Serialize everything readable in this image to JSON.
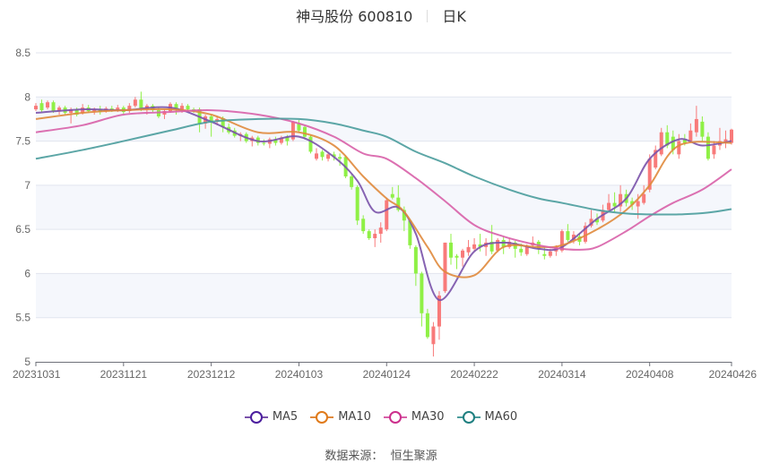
{
  "title": {
    "stock": "神马股份 600810",
    "period": "日K"
  },
  "source": {
    "label": "数据来源：",
    "value": "恒生聚源"
  },
  "chart_data": {
    "type": "candlestick",
    "ylim": [
      5,
      8.5
    ],
    "y_ticks": [
      "5",
      "5.5",
      "6",
      "6.5",
      "7",
      "7.5",
      "8",
      "8.5"
    ],
    "x_ticks": [
      "20231031",
      "20231121",
      "20231212",
      "20240103",
      "20240124",
      "20240222",
      "20240314",
      "20240408",
      "20240426"
    ],
    "grid": true,
    "legend_position": "bottom",
    "colors": {
      "up": "#f87a7a",
      "down": "#8ff046",
      "MA5": "#7a52aa",
      "MA10": "#e08a3c",
      "MA30": "#d860a8",
      "MA60": "#4a9c9c"
    },
    "legend_marker_colors": {
      "MA5": "#4b1e9e",
      "MA10": "#e07a1a",
      "MA30": "#cc2f8c",
      "MA60": "#1f7f80"
    },
    "dates": [
      "20231031",
      "20231101",
      "20231102",
      "20231103",
      "20231106",
      "20231107",
      "20231108",
      "20231109",
      "20231110",
      "20231113",
      "20231114",
      "20231115",
      "20231116",
      "20231117",
      "20231120",
      "20231121",
      "20231122",
      "20231123",
      "20231124",
      "20231127",
      "20231128",
      "20231129",
      "20231130",
      "20231201",
      "20231204",
      "20231205",
      "20231206",
      "20231207",
      "20231208",
      "20231211",
      "20231212",
      "20231213",
      "20231214",
      "20231215",
      "20231218",
      "20231219",
      "20231220",
      "20231221",
      "20231222",
      "20231225",
      "20231226",
      "20231227",
      "20231228",
      "20231229",
      "20240102",
      "20240103",
      "20240104",
      "20240105",
      "20240108",
      "20240109",
      "20240110",
      "20240111",
      "20240112",
      "20240115",
      "20240116",
      "20240117",
      "20240118",
      "20240119",
      "20240122",
      "20240123",
      "20240124",
      "20240125",
      "20240126",
      "20240129",
      "20240130",
      "20240131",
      "20240201",
      "20240202",
      "20240205",
      "20240206",
      "20240207",
      "20240208",
      "20240219",
      "20240220",
      "20240221",
      "20240222",
      "20240223",
      "20240226",
      "20240227",
      "20240228",
      "20240229",
      "20240301",
      "20240304",
      "20240305",
      "20240306",
      "20240307",
      "20240308",
      "20240311",
      "20240312",
      "20240313",
      "20240314",
      "20240315",
      "20240318",
      "20240319",
      "20240320",
      "20240321",
      "20240322",
      "20240325",
      "20240326",
      "20240327",
      "20240328",
      "20240329",
      "20240401",
      "20240402",
      "20240403",
      "20240408",
      "20240409",
      "20240410",
      "20240411",
      "20240412",
      "20240415",
      "20240416",
      "20240417",
      "20240418",
      "20240419",
      "20240422",
      "20240423",
      "20240424",
      "20240425",
      "20240426"
    ],
    "ohlc_fields": [
      "open",
      "close",
      "low",
      "high"
    ],
    "candles": [
      [
        7.86,
        7.9,
        7.84,
        7.93
      ],
      [
        7.93,
        7.85,
        7.83,
        7.97
      ],
      [
        7.88,
        7.94,
        7.86,
        7.96
      ],
      [
        7.94,
        7.84,
        7.82,
        7.96
      ],
      [
        7.84,
        7.88,
        7.8,
        7.9
      ],
      [
        7.88,
        7.82,
        7.8,
        7.9
      ],
      [
        7.82,
        7.86,
        7.7,
        7.88
      ],
      [
        7.86,
        7.8,
        7.78,
        7.88
      ],
      [
        7.82,
        7.88,
        7.8,
        7.92
      ],
      [
        7.88,
        7.84,
        7.82,
        7.91
      ],
      [
        7.84,
        7.86,
        7.8,
        7.88
      ],
      [
        7.86,
        7.83,
        7.8,
        7.9
      ],
      [
        7.84,
        7.87,
        7.82,
        7.89
      ],
      [
        7.87,
        7.85,
        7.83,
        7.9
      ],
      [
        7.85,
        7.88,
        7.83,
        7.91
      ],
      [
        7.88,
        7.83,
        7.81,
        7.9
      ],
      [
        7.84,
        7.9,
        7.82,
        7.93
      ],
      [
        7.9,
        7.97,
        7.88,
        8.0
      ],
      [
        7.97,
        7.86,
        7.84,
        8.06
      ],
      [
        7.86,
        7.9,
        7.8,
        7.92
      ],
      [
        7.9,
        7.85,
        7.83,
        7.92
      ],
      [
        7.85,
        7.78,
        7.76,
        7.88
      ],
      [
        7.8,
        7.84,
        7.75,
        7.86
      ],
      [
        7.84,
        7.92,
        7.82,
        7.94
      ],
      [
        7.92,
        7.86,
        7.8,
        7.94
      ],
      [
        7.86,
        7.9,
        7.82,
        7.93
      ],
      [
        7.9,
        7.86,
        7.84,
        7.92
      ],
      [
        7.86,
        7.84,
        7.82,
        7.88
      ],
      [
        7.86,
        7.7,
        7.6,
        7.88
      ],
      [
        7.7,
        7.78,
        7.64,
        7.8
      ],
      [
        7.78,
        7.72,
        7.55,
        7.8
      ],
      [
        7.72,
        7.75,
        7.68,
        7.78
      ],
      [
        7.76,
        7.66,
        7.6,
        7.78
      ],
      [
        7.66,
        7.6,
        7.58,
        7.7
      ],
      [
        7.62,
        7.56,
        7.54,
        7.65
      ],
      [
        7.56,
        7.58,
        7.5,
        7.6
      ],
      [
        7.58,
        7.5,
        7.48,
        7.6
      ],
      [
        7.5,
        7.54,
        7.44,
        7.56
      ],
      [
        7.54,
        7.48,
        7.45,
        7.56
      ],
      [
        7.48,
        7.47,
        7.45,
        7.52
      ],
      [
        7.47,
        7.52,
        7.42,
        7.54
      ],
      [
        7.52,
        7.48,
        7.45,
        7.55
      ],
      [
        7.48,
        7.54,
        7.46,
        7.56
      ],
      [
        7.55,
        7.5,
        7.45,
        7.57
      ],
      [
        7.52,
        7.72,
        7.5,
        7.73
      ],
      [
        7.7,
        7.62,
        7.6,
        7.74
      ],
      [
        7.66,
        7.55,
        7.52,
        7.68
      ],
      [
        7.55,
        7.38,
        7.36,
        7.57
      ],
      [
        7.3,
        7.36,
        7.28,
        7.42
      ],
      [
        7.38,
        7.32,
        7.28,
        7.4
      ],
      [
        7.3,
        7.35,
        7.27,
        7.38
      ],
      [
        7.35,
        7.32,
        7.28,
        7.38
      ],
      [
        7.32,
        7.3,
        7.22,
        7.36
      ],
      [
        7.32,
        7.1,
        7.08,
        7.34
      ],
      [
        7.1,
        6.98,
        6.95,
        7.12
      ],
      [
        6.98,
        6.6,
        6.55,
        7.0
      ],
      [
        6.62,
        6.48,
        6.45,
        6.66
      ],
      [
        6.48,
        6.4,
        6.38,
        6.5
      ],
      [
        6.4,
        6.45,
        6.3,
        6.5
      ],
      [
        6.45,
        6.52,
        6.35,
        6.58
      ],
      [
        6.5,
        6.83,
        6.48,
        6.86
      ],
      [
        6.9,
        6.86,
        6.84,
        6.98
      ],
      [
        6.86,
        6.72,
        6.7,
        7.0
      ],
      [
        6.72,
        6.6,
        6.48,
        6.76
      ],
      [
        6.6,
        6.32,
        6.28,
        6.62
      ],
      [
        6.3,
        6.0,
        5.86,
        6.32
      ],
      [
        6.0,
        5.55,
        5.4,
        6.02
      ],
      [
        5.55,
        5.28,
        5.26,
        5.6
      ],
      [
        5.2,
        5.4,
        5.06,
        5.45
      ],
      [
        5.4,
        5.75,
        5.25,
        5.8
      ],
      [
        5.8,
        6.35,
        5.78,
        6.35
      ],
      [
        6.35,
        6.18,
        6.1,
        6.45
      ],
      [
        6.2,
        6.18,
        6.05,
        6.22
      ],
      [
        6.18,
        6.26,
        6.08,
        6.28
      ],
      [
        6.24,
        6.3,
        6.2,
        6.38
      ],
      [
        6.28,
        6.33,
        6.26,
        6.4
      ],
      [
        6.33,
        6.3,
        6.25,
        6.45
      ],
      [
        6.3,
        6.35,
        6.2,
        6.4
      ],
      [
        6.36,
        6.25,
        6.22,
        6.55
      ],
      [
        6.26,
        6.38,
        6.24,
        6.4
      ],
      [
        6.38,
        6.3,
        6.22,
        6.42
      ],
      [
        6.3,
        6.36,
        6.28,
        6.4
      ],
      [
        6.35,
        6.28,
        6.18,
        6.37
      ],
      [
        6.28,
        6.24,
        6.2,
        6.34
      ],
      [
        6.22,
        6.3,
        6.2,
        6.33
      ],
      [
        6.32,
        6.35,
        6.3,
        6.42
      ],
      [
        6.36,
        6.28,
        6.22,
        6.38
      ],
      [
        6.22,
        6.2,
        6.16,
        6.3
      ],
      [
        6.2,
        6.25,
        6.18,
        6.28
      ],
      [
        6.25,
        6.3,
        6.2,
        6.32
      ],
      [
        6.26,
        6.48,
        6.24,
        6.5
      ],
      [
        6.48,
        6.38,
        6.36,
        6.56
      ],
      [
        6.38,
        6.44,
        6.34,
        6.48
      ],
      [
        6.42,
        6.36,
        6.32,
        6.46
      ],
      [
        6.36,
        6.54,
        6.34,
        6.58
      ],
      [
        6.54,
        6.62,
        6.52,
        6.72
      ],
      [
        6.62,
        6.58,
        6.55,
        6.68
      ],
      [
        6.6,
        6.72,
        6.58,
        6.78
      ],
      [
        6.72,
        6.8,
        6.7,
        6.9
      ],
      [
        6.8,
        6.76,
        6.7,
        6.92
      ],
      [
        6.76,
        6.9,
        6.7,
        7.0
      ],
      [
        6.9,
        6.8,
        6.76,
        6.95
      ],
      [
        6.82,
        6.78,
        6.72,
        6.86
      ],
      [
        6.76,
        6.82,
        6.62,
        6.9
      ],
      [
        6.8,
        6.9,
        6.78,
        7.0
      ],
      [
        6.95,
        7.3,
        6.92,
        7.35
      ],
      [
        7.2,
        7.4,
        7.18,
        7.45
      ],
      [
        7.35,
        7.6,
        7.33,
        7.65
      ],
      [
        7.6,
        7.45,
        7.42,
        7.68
      ],
      [
        7.55,
        7.4,
        7.35,
        7.62
      ],
      [
        7.35,
        7.5,
        7.3,
        7.58
      ],
      [
        7.52,
        7.48,
        7.45,
        7.58
      ],
      [
        7.5,
        7.62,
        7.48,
        7.7
      ],
      [
        7.6,
        7.75,
        7.55,
        7.9
      ],
      [
        7.72,
        7.55,
        7.5,
        7.78
      ],
      [
        7.55,
        7.3,
        7.28,
        7.6
      ],
      [
        7.35,
        7.45,
        7.3,
        7.5
      ],
      [
        7.45,
        7.5,
        7.4,
        7.65
      ],
      [
        7.48,
        7.52,
        7.42,
        7.62
      ],
      [
        7.48,
        7.63,
        7.46,
        7.64
      ]
    ],
    "series": [
      {
        "name": "MA5",
        "points": [
          [
            "20231031",
            7.82
          ],
          [
            "20231110",
            7.86
          ],
          [
            "20231121",
            7.85
          ],
          [
            "20231201",
            7.88
          ],
          [
            "20231212",
            7.72
          ],
          [
            "20231222",
            7.5
          ],
          [
            "20240103",
            7.55
          ],
          [
            "20240111",
            7.32
          ],
          [
            "20240117",
            7.05
          ],
          [
            "20240122",
            6.7
          ],
          [
            "20240126",
            6.75
          ],
          [
            "20240131",
            6.45
          ],
          [
            "20240206",
            5.7
          ],
          [
            "20240222",
            6.25
          ],
          [
            "20240229",
            6.35
          ],
          [
            "20240308",
            6.28
          ],
          [
            "20240314",
            6.3
          ],
          [
            "20240322",
            6.62
          ],
          [
            "20240329",
            6.85
          ],
          [
            "20240408",
            7.3
          ],
          [
            "20240415",
            7.52
          ],
          [
            "20240419",
            7.45
          ],
          [
            "20240426",
            7.5
          ]
        ]
      },
      {
        "name": "MA10",
        "points": [
          [
            "20231031",
            7.75
          ],
          [
            "20231110",
            7.82
          ],
          [
            "20231121",
            7.85
          ],
          [
            "20231201",
            7.86
          ],
          [
            "20231212",
            7.8
          ],
          [
            "20231222",
            7.6
          ],
          [
            "20240103",
            7.6
          ],
          [
            "20240111",
            7.45
          ],
          [
            "20240118",
            7.1
          ],
          [
            "20240124",
            6.85
          ],
          [
            "20240129",
            6.7
          ],
          [
            "20240202",
            6.3
          ],
          [
            "20240207",
            6.02
          ],
          [
            "20240222",
            5.98
          ],
          [
            "20240229",
            6.3
          ],
          [
            "20240308",
            6.3
          ],
          [
            "20240314",
            6.32
          ],
          [
            "20240322",
            6.5
          ],
          [
            "20240329",
            6.72
          ],
          [
            "20240408",
            7.0
          ],
          [
            "20240415",
            7.45
          ],
          [
            "20240426",
            7.48
          ]
        ]
      },
      {
        "name": "MA30",
        "points": [
          [
            "20231031",
            7.6
          ],
          [
            "20231110",
            7.68
          ],
          [
            "20231121",
            7.8
          ],
          [
            "20231201",
            7.83
          ],
          [
            "20231212",
            7.85
          ],
          [
            "20231222",
            7.8
          ],
          [
            "20240103",
            7.7
          ],
          [
            "20240111",
            7.55
          ],
          [
            "20240118",
            7.36
          ],
          [
            "20240124",
            7.3
          ],
          [
            "20240131",
            7.08
          ],
          [
            "20240207",
            6.82
          ],
          [
            "20240222",
            6.55
          ],
          [
            "20240229",
            6.42
          ],
          [
            "20240308",
            6.32
          ],
          [
            "20240314",
            6.28
          ],
          [
            "20240319",
            6.27
          ],
          [
            "20240322",
            6.3
          ],
          [
            "20240329",
            6.48
          ],
          [
            "20240408",
            6.65
          ],
          [
            "20240412",
            6.8
          ],
          [
            "20240419",
            6.95
          ],
          [
            "20240426",
            7.18
          ]
        ]
      },
      {
        "name": "MA60",
        "points": [
          [
            "20231031",
            7.3
          ],
          [
            "20231110",
            7.4
          ],
          [
            "20231121",
            7.5
          ],
          [
            "20231201",
            7.62
          ],
          [
            "20231212",
            7.72
          ],
          [
            "20231222",
            7.75
          ],
          [
            "20240103",
            7.75
          ],
          [
            "20240111",
            7.7
          ],
          [
            "20240118",
            7.62
          ],
          [
            "20240124",
            7.55
          ],
          [
            "20240131",
            7.38
          ],
          [
            "20240207",
            7.25
          ],
          [
            "20240222",
            7.1
          ],
          [
            "20240301",
            6.95
          ],
          [
            "20240308",
            6.85
          ],
          [
            "20240314",
            6.8
          ],
          [
            "20240322",
            6.72
          ],
          [
            "20240329",
            6.68
          ],
          [
            "20240408",
            6.67
          ],
          [
            "20240415",
            6.67
          ],
          [
            "20240422",
            6.69
          ],
          [
            "20240426",
            6.73
          ]
        ]
      }
    ]
  }
}
